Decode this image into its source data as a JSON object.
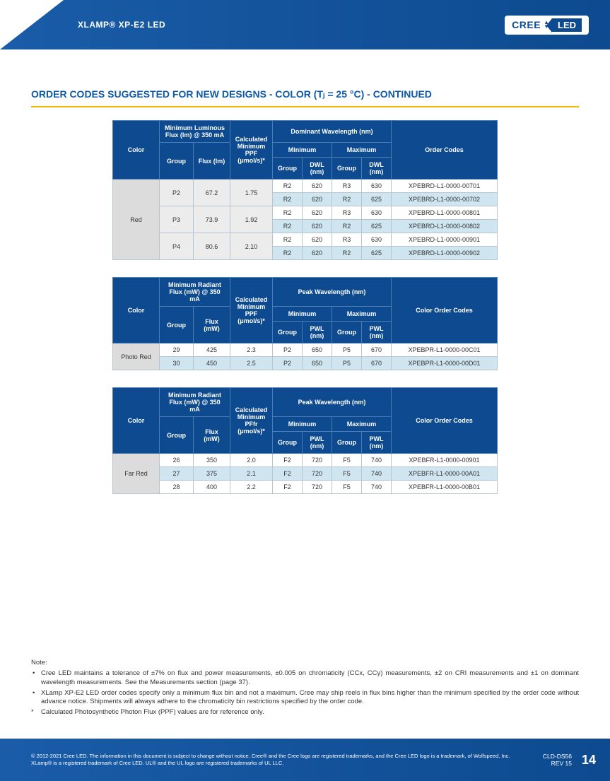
{
  "header": {
    "product_title": "XLAMP® XP-E2 LED",
    "logo_cree": "CREE",
    "logo_led": "LED"
  },
  "section_title": "ORDER CODES SUGGESTED FOR NEW DESIGNS - COLOR (Tⱼ = 25 °C) - CONTINUED",
  "colors": {
    "header_bg": "#0d4a8f",
    "header_text": "#ffffff",
    "underline": "#f0b800",
    "cell_color_bg": "#dcdcdc",
    "cell_group_bg": "#ececec",
    "row_alt_bg": "#cfe5f0",
    "border": "#b8c4d0",
    "title_color": "#0d5aa7"
  },
  "table1": {
    "h_color": "Color",
    "h_flux_span": "Minimum Luminous Flux (lm) @ 350 mA",
    "h_group": "Group",
    "h_flux": "Flux (lm)",
    "h_ppf": "Calculated Minimum PPF (μmol/s)*",
    "h_dwl_span": "Dominant Wavelength (nm)",
    "h_min": "Minimum",
    "h_max": "Maximum",
    "h_dwl_group": "Group",
    "h_dwl_nm": "DWL (nm)",
    "h_codes": "Order Codes",
    "color_label": "Red",
    "groups": [
      {
        "group": "P2",
        "flux": "67.2",
        "ppf": "1.75",
        "rows": [
          {
            "min_g": "R2",
            "min_nm": "620",
            "max_g": "R3",
            "max_nm": "630",
            "code": "XPEBRD-L1-0000-00701"
          },
          {
            "min_g": "R2",
            "min_nm": "620",
            "max_g": "R2",
            "max_nm": "625",
            "code": "XPEBRD-L1-0000-00702"
          }
        ]
      },
      {
        "group": "P3",
        "flux": "73.9",
        "ppf": "1.92",
        "rows": [
          {
            "min_g": "R2",
            "min_nm": "620",
            "max_g": "R3",
            "max_nm": "630",
            "code": "XPEBRD-L1-0000-00801"
          },
          {
            "min_g": "R2",
            "min_nm": "620",
            "max_g": "R2",
            "max_nm": "625",
            "code": "XPEBRD-L1-0000-00802"
          }
        ]
      },
      {
        "group": "P4",
        "flux": "80.6",
        "ppf": "2.10",
        "rows": [
          {
            "min_g": "R2",
            "min_nm": "620",
            "max_g": "R3",
            "max_nm": "630",
            "code": "XPEBRD-L1-0000-00901"
          },
          {
            "min_g": "R2",
            "min_nm": "620",
            "max_g": "R2",
            "max_nm": "625",
            "code": "XPEBRD-L1-0000-00902"
          }
        ]
      }
    ]
  },
  "table2": {
    "h_color": "Color",
    "h_flux_span": "Minimum Radiant Flux (mW) @ 350 mA",
    "h_group": "Group",
    "h_flux": "Flux (mW)",
    "h_ppf": "Calculated Minimum PPF (μmol/s)*",
    "h_pwl_span": "Peak Wavelength (nm)",
    "h_min": "Minimum",
    "h_max": "Maximum",
    "h_pwl_group": "Group",
    "h_pwl_nm": "PWL (nm)",
    "h_codes": "Color Order Codes",
    "color_label": "Photo Red",
    "rows": [
      {
        "group": "29",
        "flux": "425",
        "ppf": "2.3",
        "min_g": "P2",
        "min_nm": "650",
        "max_g": "P5",
        "max_nm": "670",
        "code": "XPEBPR-L1-0000-00C01"
      },
      {
        "group": "30",
        "flux": "450",
        "ppf": "2.5",
        "min_g": "P2",
        "min_nm": "650",
        "max_g": "P5",
        "max_nm": "670",
        "code": "XPEBPR-L1-0000-00D01"
      }
    ]
  },
  "table3": {
    "h_color": "Color",
    "h_flux_span": "Minimum Radiant Flux (mW) @ 350 mA",
    "h_group": "Group",
    "h_flux": "Flux (mW)",
    "h_ppf": "Calculated Minimum PFfr (μmol/s)*",
    "h_pwl_span": "Peak Wavelength (nm)",
    "h_min": "Minimum",
    "h_max": "Maximum",
    "h_pwl_group": "Group",
    "h_pwl_nm": "PWL (nm)",
    "h_codes": "Color Order Codes",
    "color_label": "Far Red",
    "rows": [
      {
        "group": "26",
        "flux": "350",
        "ppf": "2.0",
        "min_g": "F2",
        "min_nm": "720",
        "max_g": "F5",
        "max_nm": "740",
        "code": "XPEBFR-L1-0000-00901"
      },
      {
        "group": "27",
        "flux": "375",
        "ppf": "2.1",
        "min_g": "F2",
        "min_nm": "720",
        "max_g": "F5",
        "max_nm": "740",
        "code": "XPEBFR-L1-0000-00A01"
      },
      {
        "group": "28",
        "flux": "400",
        "ppf": "2.2",
        "min_g": "F2",
        "min_nm": "720",
        "max_g": "F5",
        "max_nm": "740",
        "code": "XPEBFR-L1-0000-00B01"
      }
    ]
  },
  "notes": {
    "title": "Note:",
    "items": [
      "Cree LED maintains a tolerance of ±7% on flux and power measurements, ±0.005 on chromaticity (CCx, CCy) measurements, ±2 on CRI measurements and ±1 on dominant wavelength measurements. See the Measurements section (page 37).",
      "XLamp XP-E2 LED order codes specify only a minimum flux bin and not a maximum. Cree may ship reels in flux bins higher than the minimum specified by the order code without advance notice. Shipments will always adhere to the chromaticity bin restrictions specified by the order code."
    ],
    "star": "Calculated Photosynthetic Photon Flux (PPF) values are for reference only."
  },
  "footer": {
    "copyright": "© 2012-2021 Cree LED. The information in this document is subject to change without notice. Cree® and the Cree logo are registered trademarks, and the Cree LED logo is a trademark, of Wolfspeed, Inc. XLamp® is a registered trademark of Cree LED. UL® and the UL logo are registered trademarks of UL LLC.",
    "doc_id": "CLD-DS56",
    "rev": "REV 15",
    "page": "14"
  }
}
